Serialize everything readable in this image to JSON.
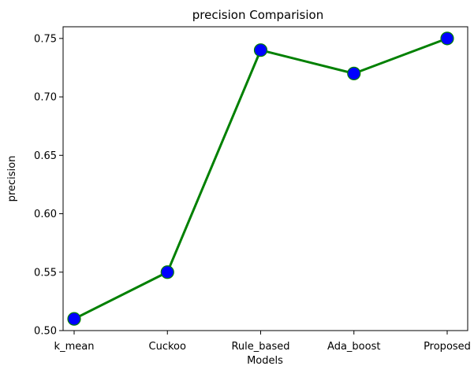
{
  "chart_data": {
    "type": "line",
    "title": "precision Comparision",
    "xlabel": "Models",
    "ylabel": "precision",
    "categories": [
      "k_mean",
      "Cuckoo",
      "Rule_based",
      "Ada_boost",
      "Proposed"
    ],
    "series": [
      {
        "values": [
          0.51,
          0.55,
          0.74,
          0.72,
          0.75
        ]
      }
    ],
    "ylim": [
      0.5,
      0.76
    ],
    "yticks": [
      0.5,
      0.55,
      0.6,
      0.65,
      0.7,
      0.75
    ],
    "ytick_labels": [
      "0.50",
      "0.55",
      "0.60",
      "0.65",
      "0.70",
      "0.75"
    ],
    "grid": false,
    "line_color": "#008000",
    "marker_color": "#0000ff",
    "marker_edge_color": "#008000"
  }
}
